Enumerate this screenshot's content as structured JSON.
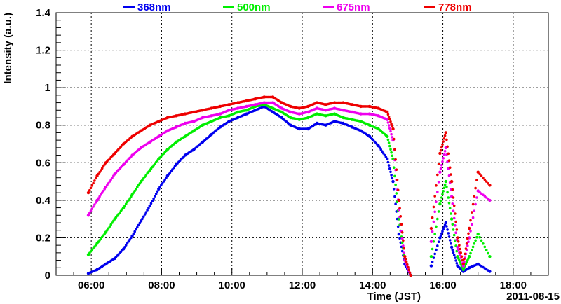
{
  "chart_data": {
    "type": "scatter",
    "xlabel": "Time (JST)",
    "ylabel": "Intensity (a.u.)",
    "date_label": "2011-08-15",
    "xlim": [
      "05:00",
      "19:00"
    ],
    "ylim": [
      0,
      1.4
    ],
    "x_ticks": [
      "06:00",
      "08:00",
      "10:00",
      "12:00",
      "14:00",
      "16:00",
      "18:00"
    ],
    "y_ticks": [
      "0",
      "0.2",
      "0.4",
      "0.6",
      "0.8",
      "1",
      "1.2",
      "1.4"
    ],
    "grid": true,
    "legend_position": "top",
    "series": [
      {
        "name": "368nm",
        "color": "#0000ee",
        "points": [
          [
            "05:55",
            0.01
          ],
          [
            "06:10",
            0.03
          ],
          [
            "06:25",
            0.06
          ],
          [
            "06:40",
            0.09
          ],
          [
            "06:55",
            0.14
          ],
          [
            "07:10",
            0.21
          ],
          [
            "07:25",
            0.29
          ],
          [
            "07:40",
            0.37
          ],
          [
            "07:55",
            0.46
          ],
          [
            "08:10",
            0.53
          ],
          [
            "08:25",
            0.59
          ],
          [
            "08:40",
            0.64
          ],
          [
            "08:55",
            0.67
          ],
          [
            "09:10",
            0.71
          ],
          [
            "09:25",
            0.75
          ],
          [
            "09:40",
            0.79
          ],
          [
            "09:55",
            0.82
          ],
          [
            "10:10",
            0.84
          ],
          [
            "10:25",
            0.86
          ],
          [
            "10:40",
            0.88
          ],
          [
            "10:55",
            0.9
          ],
          [
            "11:10",
            0.87
          ],
          [
            "11:25",
            0.84
          ],
          [
            "11:40",
            0.8
          ],
          [
            "11:55",
            0.78
          ],
          [
            "12:10",
            0.78
          ],
          [
            "12:25",
            0.81
          ],
          [
            "12:40",
            0.8
          ],
          [
            "12:55",
            0.82
          ],
          [
            "13:10",
            0.81
          ],
          [
            "13:25",
            0.79
          ],
          [
            "13:40",
            0.77
          ],
          [
            "13:55",
            0.74
          ],
          [
            "14:10",
            0.69
          ],
          [
            "14:25",
            0.62
          ],
          [
            "14:35",
            0.5
          ],
          [
            "14:45",
            0.22
          ],
          [
            "14:55",
            0.06
          ],
          [
            "15:05",
            0.0
          ],
          [
            "15:40",
            0.05
          ],
          [
            "15:55",
            0.2
          ],
          [
            "16:05",
            0.28
          ],
          [
            "16:15",
            0.15
          ],
          [
            "16:25",
            0.05
          ],
          [
            "16:35",
            0.02
          ],
          [
            "16:45",
            0.04
          ],
          [
            "17:00",
            0.06
          ],
          [
            "17:20",
            0.02
          ]
        ]
      },
      {
        "name": "500nm",
        "color": "#00ee00",
        "points": [
          [
            "05:55",
            0.11
          ],
          [
            "06:10",
            0.17
          ],
          [
            "06:25",
            0.23
          ],
          [
            "06:40",
            0.3
          ],
          [
            "06:55",
            0.36
          ],
          [
            "07:10",
            0.43
          ],
          [
            "07:25",
            0.5
          ],
          [
            "07:40",
            0.56
          ],
          [
            "07:55",
            0.62
          ],
          [
            "08:10",
            0.67
          ],
          [
            "08:25",
            0.71
          ],
          [
            "08:40",
            0.74
          ],
          [
            "08:55",
            0.77
          ],
          [
            "09:10",
            0.8
          ],
          [
            "09:25",
            0.82
          ],
          [
            "09:40",
            0.84
          ],
          [
            "09:55",
            0.85
          ],
          [
            "10:10",
            0.87
          ],
          [
            "10:25",
            0.88
          ],
          [
            "10:40",
            0.9
          ],
          [
            "10:55",
            0.91
          ],
          [
            "11:10",
            0.89
          ],
          [
            "11:25",
            0.87
          ],
          [
            "11:40",
            0.84
          ],
          [
            "11:55",
            0.83
          ],
          [
            "12:10",
            0.84
          ],
          [
            "12:25",
            0.86
          ],
          [
            "12:40",
            0.85
          ],
          [
            "12:55",
            0.86
          ],
          [
            "13:10",
            0.84
          ],
          [
            "13:25",
            0.83
          ],
          [
            "13:40",
            0.82
          ],
          [
            "13:55",
            0.8
          ],
          [
            "14:10",
            0.78
          ],
          [
            "14:25",
            0.74
          ],
          [
            "14:35",
            0.62
          ],
          [
            "14:45",
            0.3
          ],
          [
            "14:55",
            0.08
          ],
          [
            "15:05",
            0.0
          ],
          [
            "15:40",
            0.1
          ],
          [
            "15:55",
            0.38
          ],
          [
            "16:05",
            0.5
          ],
          [
            "16:15",
            0.3
          ],
          [
            "16:25",
            0.1
          ],
          [
            "16:35",
            0.03
          ],
          [
            "16:45",
            0.1
          ],
          [
            "17:00",
            0.22
          ],
          [
            "17:20",
            0.1
          ]
        ]
      },
      {
        "name": "675nm",
        "color": "#ee00ee",
        "points": [
          [
            "05:55",
            0.32
          ],
          [
            "06:10",
            0.4
          ],
          [
            "06:25",
            0.47
          ],
          [
            "06:40",
            0.54
          ],
          [
            "06:55",
            0.59
          ],
          [
            "07:10",
            0.64
          ],
          [
            "07:25",
            0.68
          ],
          [
            "07:40",
            0.71
          ],
          [
            "07:55",
            0.74
          ],
          [
            "08:10",
            0.77
          ],
          [
            "08:25",
            0.79
          ],
          [
            "08:40",
            0.81
          ],
          [
            "08:55",
            0.82
          ],
          [
            "09:10",
            0.84
          ],
          [
            "09:25",
            0.85
          ],
          [
            "09:40",
            0.86
          ],
          [
            "09:55",
            0.88
          ],
          [
            "10:10",
            0.89
          ],
          [
            "10:25",
            0.9
          ],
          [
            "10:40",
            0.91
          ],
          [
            "10:55",
            0.92
          ],
          [
            "11:10",
            0.92
          ],
          [
            "11:25",
            0.89
          ],
          [
            "11:40",
            0.87
          ],
          [
            "11:55",
            0.86
          ],
          [
            "12:10",
            0.87
          ],
          [
            "12:25",
            0.89
          ],
          [
            "12:40",
            0.88
          ],
          [
            "12:55",
            0.89
          ],
          [
            "13:10",
            0.88
          ],
          [
            "13:25",
            0.87
          ],
          [
            "13:40",
            0.86
          ],
          [
            "13:55",
            0.86
          ],
          [
            "14:10",
            0.85
          ],
          [
            "14:25",
            0.83
          ],
          [
            "14:35",
            0.72
          ],
          [
            "14:45",
            0.35
          ],
          [
            "14:55",
            0.08
          ],
          [
            "15:05",
            0.0
          ],
          [
            "15:40",
            0.18
          ],
          [
            "15:55",
            0.55
          ],
          [
            "16:05",
            0.68
          ],
          [
            "16:15",
            0.42
          ],
          [
            "16:25",
            0.15
          ],
          [
            "16:35",
            0.05
          ],
          [
            "16:45",
            0.2
          ],
          [
            "17:00",
            0.45
          ],
          [
            "17:20",
            0.4
          ]
        ]
      },
      {
        "name": "778nm",
        "color": "#ee0000",
        "points": [
          [
            "05:55",
            0.44
          ],
          [
            "06:10",
            0.53
          ],
          [
            "06:25",
            0.6
          ],
          [
            "06:40",
            0.65
          ],
          [
            "06:55",
            0.7
          ],
          [
            "07:10",
            0.74
          ],
          [
            "07:25",
            0.77
          ],
          [
            "07:40",
            0.8
          ],
          [
            "07:55",
            0.82
          ],
          [
            "08:10",
            0.84
          ],
          [
            "08:25",
            0.85
          ],
          [
            "08:40",
            0.86
          ],
          [
            "08:55",
            0.87
          ],
          [
            "09:10",
            0.88
          ],
          [
            "09:25",
            0.89
          ],
          [
            "09:40",
            0.9
          ],
          [
            "09:55",
            0.91
          ],
          [
            "10:10",
            0.92
          ],
          [
            "10:25",
            0.93
          ],
          [
            "10:40",
            0.94
          ],
          [
            "10:55",
            0.95
          ],
          [
            "11:10",
            0.95
          ],
          [
            "11:25",
            0.92
          ],
          [
            "11:40",
            0.9
          ],
          [
            "11:55",
            0.89
          ],
          [
            "12:10",
            0.9
          ],
          [
            "12:25",
            0.92
          ],
          [
            "12:40",
            0.91
          ],
          [
            "12:55",
            0.92
          ],
          [
            "13:10",
            0.92
          ],
          [
            "13:25",
            0.91
          ],
          [
            "13:40",
            0.9
          ],
          [
            "13:55",
            0.9
          ],
          [
            "14:10",
            0.89
          ],
          [
            "14:25",
            0.87
          ],
          [
            "14:35",
            0.78
          ],
          [
            "14:45",
            0.4
          ],
          [
            "14:55",
            0.1
          ],
          [
            "15:05",
            0.0
          ],
          [
            "15:40",
            0.25
          ],
          [
            "15:55",
            0.65
          ],
          [
            "16:05",
            0.76
          ],
          [
            "16:15",
            0.5
          ],
          [
            "16:25",
            0.2
          ],
          [
            "16:35",
            0.06
          ],
          [
            "16:45",
            0.25
          ],
          [
            "17:00",
            0.55
          ],
          [
            "17:20",
            0.48
          ]
        ]
      }
    ]
  }
}
